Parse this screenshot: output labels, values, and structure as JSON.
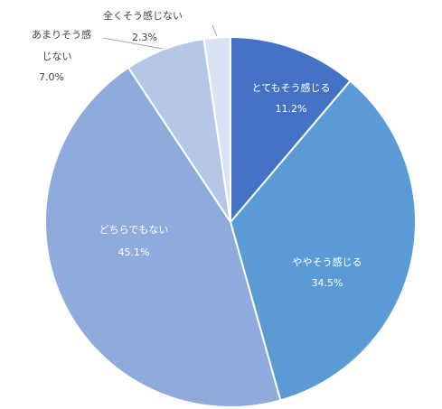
{
  "chart_data": {
    "type": "pie",
    "title": "",
    "start_angle_deg": 0,
    "direction": "clockwise",
    "legend": "none",
    "slices": [
      {
        "label": "とてもそう感じる",
        "value": 11.2,
        "value_label": "11.2%",
        "color": "#4472c4",
        "label_position": "inside"
      },
      {
        "label": "ややそう感じる",
        "value": 34.5,
        "value_label": "34.5%",
        "color": "#5b9bd5",
        "label_position": "inside"
      },
      {
        "label": "どちらでもない",
        "value": 45.1,
        "value_label": "45.1%",
        "color": "#8faadc",
        "label_position": "inside"
      },
      {
        "label": "あまりそう感じない",
        "value": 7.0,
        "value_label": "7.0%",
        "color": "#b4c7e7",
        "label_position": "outside"
      },
      {
        "label": "全くそう感じない",
        "value": 2.3,
        "value_label": "2.3%",
        "color": "#dae3f3",
        "label_position": "outside"
      }
    ]
  }
}
